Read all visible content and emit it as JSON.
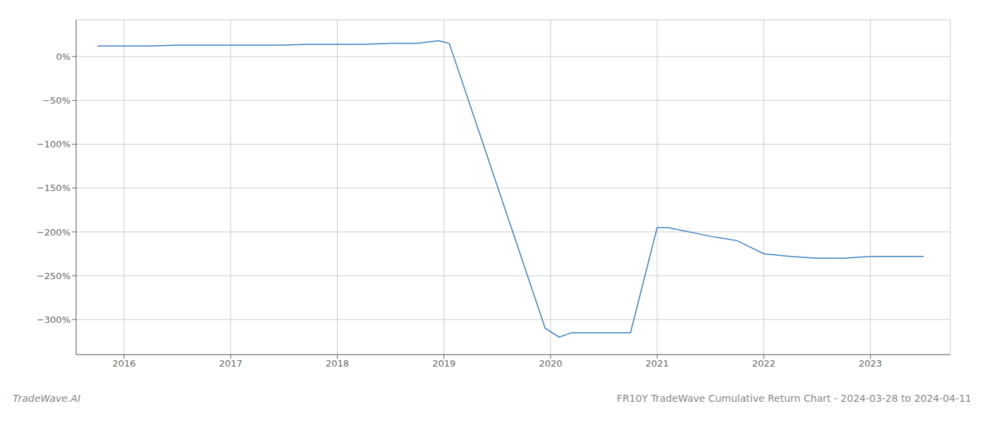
{
  "chart_data": {
    "type": "line",
    "title": "FR10Y TradeWave Cumulative Return Chart - 2024-03-28 to 2024-04-11",
    "annotations": [
      "TradeWave.AI"
    ],
    "x": [
      2015.75,
      2016.0,
      2016.25,
      2016.5,
      2016.75,
      2017.0,
      2017.25,
      2017.5,
      2017.75,
      2018.0,
      2018.25,
      2018.5,
      2018.75,
      2018.95,
      2019.05,
      2019.95,
      2020.08,
      2020.2,
      2020.75,
      2021.0,
      2021.1,
      2021.5,
      2021.75,
      2022.0,
      2022.25,
      2022.5,
      2022.75,
      2023.0,
      2023.25,
      2023.5
    ],
    "values": [
      12,
      12,
      12,
      13,
      13,
      13,
      13,
      13,
      14,
      14,
      14,
      15,
      15,
      18,
      15,
      -310,
      -320,
      -315,
      -315,
      -195,
      -195,
      -205,
      -210,
      -225,
      -228,
      -230,
      -230,
      -228,
      -228,
      -228
    ],
    "color": "#3a7ebf",
    "xlim": [
      2015.55,
      2023.75
    ],
    "ylim": [
      -340,
      42
    ],
    "xticks": [
      2016,
      2017,
      2018,
      2019,
      2020,
      2021,
      2022,
      2023
    ],
    "yticks": [
      {
        "value": 0,
        "label": "0%"
      },
      {
        "value": -50,
        "label": "−50%"
      },
      {
        "value": -100,
        "label": "−100%"
      },
      {
        "value": -150,
        "label": "−150%"
      },
      {
        "value": -200,
        "label": "−200%"
      },
      {
        "value": -250,
        "label": "−250%"
      },
      {
        "value": -300,
        "label": "−300%"
      }
    ],
    "grid": true
  }
}
